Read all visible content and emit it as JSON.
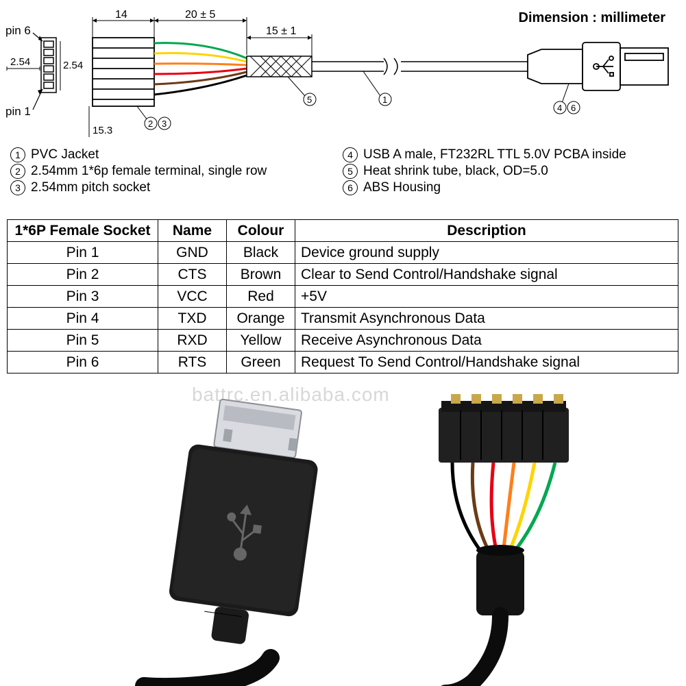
{
  "header": {
    "dimension_label": "Dimension : millimeter"
  },
  "diagram": {
    "pin6_label": "pin 6",
    "pin1_label": "pin 1",
    "pitch_label": "2.54",
    "pitch_label_vert": "2.54",
    "dim_14": "14",
    "dim_20": "20 ± 5",
    "dim_15": "15 ± 1",
    "dim_15_3": "15.3",
    "callout_5": "5",
    "callout_1": "1",
    "callout_2": "2",
    "callout_3": "3",
    "callout_4": "4",
    "callout_6": "6",
    "wire_colors": [
      "#00a84f",
      "#ffd400",
      "#ff7f1a",
      "#e60012",
      "#6b3b17",
      "#000000"
    ]
  },
  "legend": {
    "left": [
      {
        "n": "1",
        "text": "PVC Jacket"
      },
      {
        "n": "2",
        "text": "2.54mm 1*6p female terminal, single row"
      },
      {
        "n": "3",
        "text": "2.54mm pitch socket"
      }
    ],
    "right": [
      {
        "n": "4",
        "text": "USB A male, FT232RL TTL 5.0V PCBA inside"
      },
      {
        "n": "5",
        "text": "Heat shrink tube, black, OD=5.0"
      },
      {
        "n": "6",
        "text": "ABS Housing"
      }
    ]
  },
  "table": {
    "headers": [
      "1*6P Female Socket",
      "Name",
      "Colour",
      "Description"
    ],
    "rows": [
      {
        "socket": "Pin 1",
        "name": "GND",
        "colour": "Black",
        "desc": "Device ground supply"
      },
      {
        "socket": "Pin 2",
        "name": "CTS",
        "colour": "Brown",
        "desc": "Clear to Send Control/Handshake signal"
      },
      {
        "socket": "Pin 3",
        "name": "VCC",
        "colour": "Red",
        "desc": "+5V"
      },
      {
        "socket": "Pin 4",
        "name": "TXD",
        "colour": "Orange",
        "desc": "Transmit Asynchronous Data"
      },
      {
        "socket": "Pin 5",
        "name": "RXD",
        "colour": "Yellow",
        "desc": "Receive Asynchronous Data"
      },
      {
        "socket": "Pin 6",
        "name": "RTS",
        "colour": "Green",
        "desc": "Request To Send Control/Handshake signal"
      }
    ]
  },
  "watermark": "battrc.en.alibaba.com",
  "photo": {
    "usb_body_color": "#1b1b1b",
    "usb_metal_color": "#d9dbe0",
    "connector_color": "#202020",
    "pin_metal_color": "#c8b060",
    "cable_color": "#0c0c0c",
    "heatshrink_color": "#141414",
    "wire_colors": [
      "#000000",
      "#6b3b17",
      "#e60012",
      "#ff7f1a",
      "#ffd400",
      "#00a84f"
    ]
  }
}
